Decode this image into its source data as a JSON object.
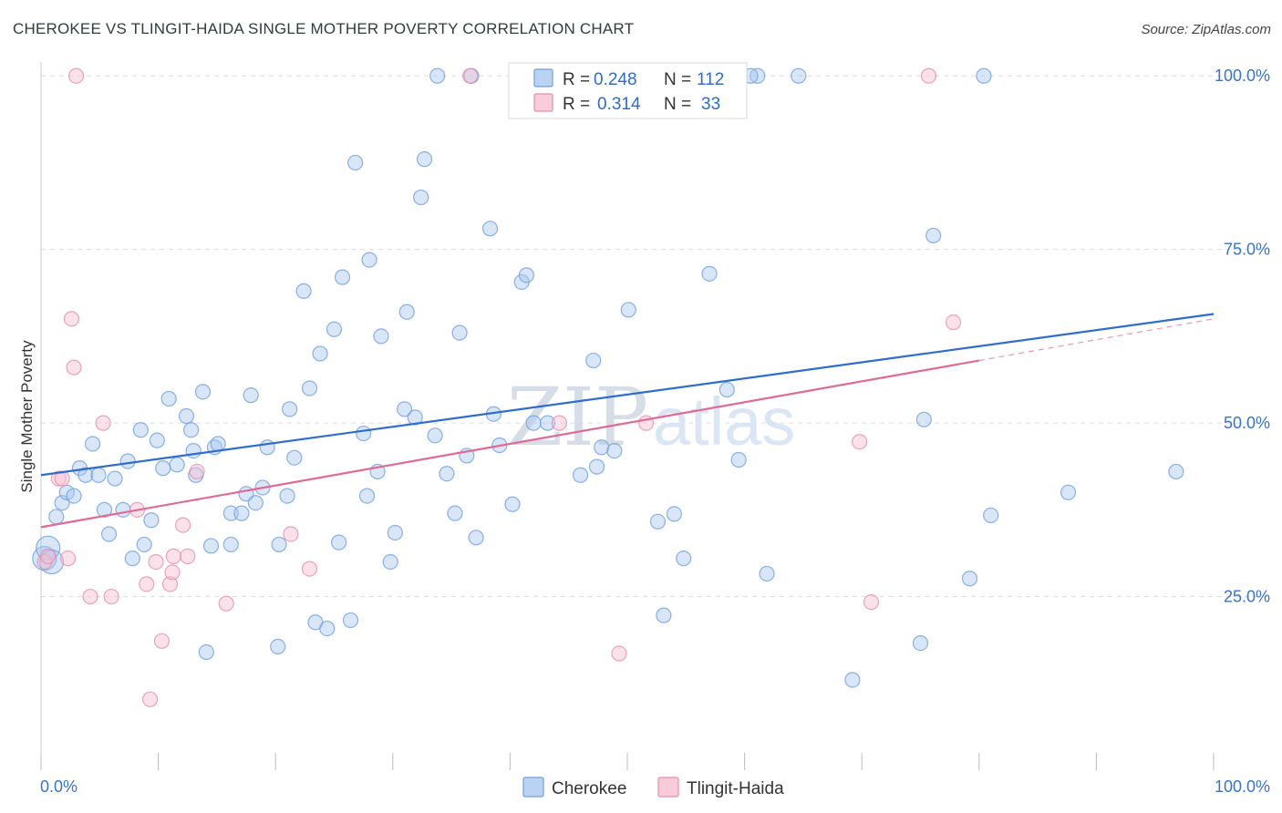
{
  "title": "CHEROKEE VS TLINGIT-HAIDA SINGLE MOTHER POVERTY CORRELATION CHART",
  "source": "Source: ZipAtlas.com",
  "watermark": {
    "zip": "ZIP",
    "atlas": "atlas"
  },
  "colors": {
    "cherokee_fill": "#a9c8f0",
    "cherokee_stroke": "#6f9fdc",
    "cherokee_line": "#2f6ccc",
    "tlingit_fill": "#f6bfd0",
    "tlingit_stroke": "#e48fac",
    "tlingit_line": "#e06a95",
    "grid": "#d9dde2",
    "axis_label": "#3a74c4"
  },
  "legend": {
    "rows": [
      {
        "r_label": "R =",
        "r_value": "0.248",
        "n_label": "N =",
        "n_value": "112"
      },
      {
        "r_label": "R =",
        "r_value": "0.314",
        "n_label": "N =",
        "n_value": "33"
      }
    ]
  },
  "bottom_legend": {
    "series1": "Cherokee",
    "series2": "Tlingit-Haida"
  },
  "chart_data": {
    "type": "scatter",
    "title": "CHEROKEE VS TLINGIT-HAIDA SINGLE MOTHER POVERTY CORRELATION CHART",
    "xlabel": "",
    "ylabel": "Single Mother Poverty",
    "xlim": [
      0,
      100
    ],
    "ylim": [
      0,
      102
    ],
    "x_tick_labels": [
      "0.0%",
      "100.0%"
    ],
    "y_tick_labels": [
      "25.0%",
      "50.0%",
      "75.0%",
      "100.0%"
    ],
    "y_ticks": [
      25,
      50,
      75,
      100
    ],
    "grid": true,
    "series": [
      {
        "name": "Cherokee",
        "R": 0.248,
        "N": 112,
        "trend": {
          "x": [
            0,
            100
          ],
          "y": [
            42.5,
            65.7
          ],
          "dashed_from": null
        },
        "points": [
          [
            0.3,
            30.5
          ],
          [
            0.6,
            32
          ],
          [
            0.9,
            30
          ],
          [
            1.3,
            36.5
          ],
          [
            1.8,
            38.5
          ],
          [
            2.2,
            40
          ],
          [
            2.8,
            39.5
          ],
          [
            3.3,
            43.5
          ],
          [
            3.8,
            42.5
          ],
          [
            4.4,
            47
          ],
          [
            4.9,
            42.5
          ],
          [
            5.4,
            37.5
          ],
          [
            5.8,
            34
          ],
          [
            6.3,
            42
          ],
          [
            7.0,
            37.5
          ],
          [
            7.4,
            44.5
          ],
          [
            7.8,
            30.5
          ],
          [
            8.5,
            49
          ],
          [
            8.8,
            32.5
          ],
          [
            9.4,
            36
          ],
          [
            9.9,
            47.5
          ],
          [
            10.4,
            43.5
          ],
          [
            10.9,
            53.5
          ],
          [
            11.6,
            44
          ],
          [
            12.4,
            51
          ],
          [
            12.8,
            49
          ],
          [
            13.0,
            46
          ],
          [
            13.2,
            42.5
          ],
          [
            13.8,
            54.5
          ],
          [
            14.1,
            17
          ],
          [
            14.5,
            32.3
          ],
          [
            14.8,
            46.5
          ],
          [
            15.1,
            47
          ],
          [
            16.2,
            32.5
          ],
          [
            16.2,
            37
          ],
          [
            17.1,
            37
          ],
          [
            17.5,
            39.8
          ],
          [
            17.9,
            54
          ],
          [
            18.3,
            38.5
          ],
          [
            18.9,
            40.7
          ],
          [
            19.3,
            46.5
          ],
          [
            20.2,
            17.8
          ],
          [
            20.3,
            32.5
          ],
          [
            21.0,
            39.5
          ],
          [
            21.2,
            52
          ],
          [
            21.6,
            45
          ],
          [
            22.4,
            69
          ],
          [
            22.9,
            55
          ],
          [
            23.4,
            21.3
          ],
          [
            23.8,
            60
          ],
          [
            24.4,
            20.4
          ],
          [
            25.0,
            63.5
          ],
          [
            25.4,
            32.8
          ],
          [
            25.7,
            71
          ],
          [
            26.4,
            21.6
          ],
          [
            26.8,
            87.5
          ],
          [
            27.5,
            48.5
          ],
          [
            27.8,
            39.5
          ],
          [
            28.0,
            73.5
          ],
          [
            28.7,
            43
          ],
          [
            29.0,
            62.5
          ],
          [
            29.8,
            30
          ],
          [
            30.2,
            34.2
          ],
          [
            31.0,
            52
          ],
          [
            31.2,
            66
          ],
          [
            31.9,
            50.8
          ],
          [
            32.4,
            82.5
          ],
          [
            32.7,
            88
          ],
          [
            33.6,
            48.2
          ],
          [
            33.8,
            100
          ],
          [
            34.6,
            42.7
          ],
          [
            35.3,
            37
          ],
          [
            35.7,
            63
          ],
          [
            36.3,
            45.3
          ],
          [
            36.7,
            100
          ],
          [
            37.1,
            33.5
          ],
          [
            38.3,
            78
          ],
          [
            38.6,
            51.3
          ],
          [
            39.1,
            46.8
          ],
          [
            40.2,
            38.3
          ],
          [
            41.0,
            70.3
          ],
          [
            41.4,
            71.3
          ],
          [
            42.0,
            50
          ],
          [
            42.5,
            100
          ],
          [
            43.2,
            50
          ],
          [
            46.0,
            42.5
          ],
          [
            47.1,
            59
          ],
          [
            47.4,
            43.7
          ],
          [
            47.8,
            46.5
          ],
          [
            48.9,
            46
          ],
          [
            49.7,
            100
          ],
          [
            50.1,
            66.3
          ],
          [
            52.6,
            35.8
          ],
          [
            53.1,
            22.3
          ],
          [
            54.0,
            36.9
          ],
          [
            54.8,
            30.5
          ],
          [
            57.0,
            71.5
          ],
          [
            58.5,
            54.8
          ],
          [
            59.5,
            44.7
          ],
          [
            61.1,
            100
          ],
          [
            61.9,
            28.3
          ],
          [
            64.6,
            100
          ],
          [
            69.2,
            13
          ],
          [
            75.0,
            18.3
          ],
          [
            75.3,
            50.5
          ],
          [
            76.1,
            77
          ],
          [
            79.2,
            27.6
          ],
          [
            80.4,
            100
          ],
          [
            81.0,
            36.7
          ],
          [
            87.6,
            40
          ],
          [
            96.8,
            43
          ],
          [
            60.5,
            100
          ]
        ]
      },
      {
        "name": "Tlingit-Haida",
        "R": 0.314,
        "N": 33,
        "trend": {
          "x": [
            0,
            100
          ],
          "y": [
            35,
            65
          ],
          "dashed_from": 80
        },
        "points": [
          [
            0.3,
            30
          ],
          [
            0.6,
            30.8
          ],
          [
            1.5,
            42
          ],
          [
            1.8,
            42
          ],
          [
            2.3,
            30.5
          ],
          [
            2.6,
            65
          ],
          [
            2.8,
            58
          ],
          [
            3.0,
            100
          ],
          [
            4.2,
            25
          ],
          [
            5.3,
            50
          ],
          [
            6.0,
            25
          ],
          [
            8.2,
            37.5
          ],
          [
            9.0,
            26.8
          ],
          [
            10.3,
            18.6
          ],
          [
            11.0,
            26.8
          ],
          [
            11.2,
            28.5
          ],
          [
            11.3,
            30.8
          ],
          [
            12.1,
            35.3
          ],
          [
            12.5,
            30.8
          ],
          [
            13.3,
            43
          ],
          [
            15.8,
            24
          ],
          [
            21.3,
            34
          ],
          [
            22.9,
            29
          ],
          [
            9.3,
            10.2
          ],
          [
            9.8,
            30
          ],
          [
            36.6,
            100
          ],
          [
            44.2,
            50
          ],
          [
            49.3,
            16.8
          ],
          [
            51.6,
            50
          ],
          [
            69.8,
            47.3
          ],
          [
            70.8,
            24.2
          ],
          [
            75.7,
            100
          ],
          [
            77.8,
            64.5
          ]
        ]
      }
    ]
  }
}
